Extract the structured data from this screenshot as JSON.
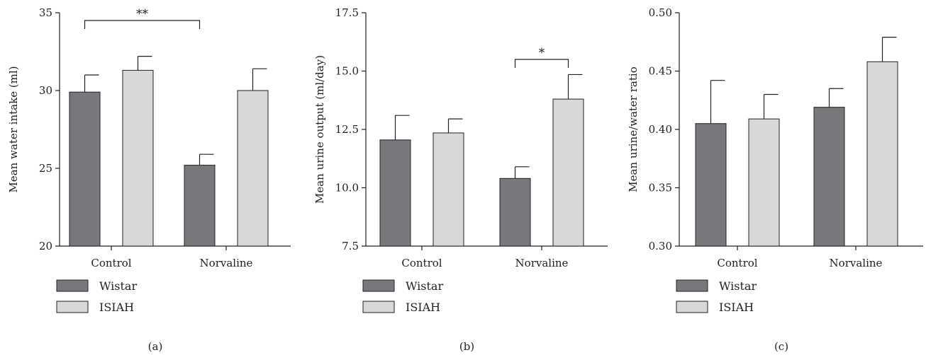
{
  "colors": {
    "Wistar": "#77787b",
    "ISIAH": "#d7d8da",
    "ink": "#231f20"
  },
  "legend": [
    {
      "name": "Wistar",
      "color": "#77787b"
    },
    {
      "name": "ISIAH",
      "color": "#d7d8da"
    }
  ],
  "chart_data": [
    {
      "type": "bar",
      "panel_label": "(a)",
      "ylabel": "Mean water intake (ml)",
      "xlabel": "",
      "categories": [
        "Control",
        "Norvaline"
      ],
      "ylim": [
        20,
        35
      ],
      "yticks": [
        20,
        25,
        30,
        35
      ],
      "ytick_labels": [
        "20",
        "25",
        "30",
        "35"
      ],
      "series": [
        {
          "name": "Wistar",
          "values": [
            29.9,
            25.2
          ],
          "errors": [
            1.1,
            0.7
          ]
        },
        {
          "name": "ISIAH",
          "values": [
            31.3,
            30.0
          ],
          "errors": [
            0.9,
            1.4
          ]
        }
      ],
      "significance": [
        {
          "label": "**",
          "from": {
            "category": 0,
            "series": 0
          },
          "to": {
            "category": 1,
            "series": 0
          },
          "y": 34.5
        }
      ]
    },
    {
      "type": "bar",
      "panel_label": "(b)",
      "ylabel": "Mean urine output (ml/day)",
      "xlabel": "",
      "categories": [
        "Control",
        "Norvaline"
      ],
      "ylim": [
        7.5,
        17.5
      ],
      "yticks": [
        7.5,
        10.0,
        12.5,
        15.0,
        17.5
      ],
      "ytick_labels": [
        "7.5",
        "10.0",
        "12.5",
        "15.0",
        "17.5"
      ],
      "series": [
        {
          "name": "Wistar",
          "values": [
            12.05,
            10.4
          ],
          "errors": [
            1.05,
            0.5
          ]
        },
        {
          "name": "ISIAH",
          "values": [
            12.35,
            13.8
          ],
          "errors": [
            0.6,
            1.05
          ]
        }
      ],
      "significance": [
        {
          "label": "*",
          "from": {
            "category": 1,
            "series": 0
          },
          "to": {
            "category": 1,
            "series": 1
          },
          "y": 15.5
        }
      ]
    },
    {
      "type": "bar",
      "panel_label": "(c)",
      "ylabel": "Mean urine/water ratio",
      "xlabel": "",
      "categories": [
        "Control",
        "Norvaline"
      ],
      "ylim": [
        0.3,
        0.5
      ],
      "yticks": [
        0.3,
        0.35,
        0.4,
        0.45,
        0.5
      ],
      "ytick_labels": [
        "0.30",
        "0.35",
        "0.40",
        "0.45",
        "0.50"
      ],
      "series": [
        {
          "name": "Wistar",
          "values": [
            0.405,
            0.419
          ],
          "errors": [
            0.037,
            0.016
          ]
        },
        {
          "name": "ISIAH",
          "values": [
            0.409,
            0.458
          ],
          "errors": [
            0.021,
            0.021
          ]
        }
      ],
      "significance": []
    }
  ]
}
